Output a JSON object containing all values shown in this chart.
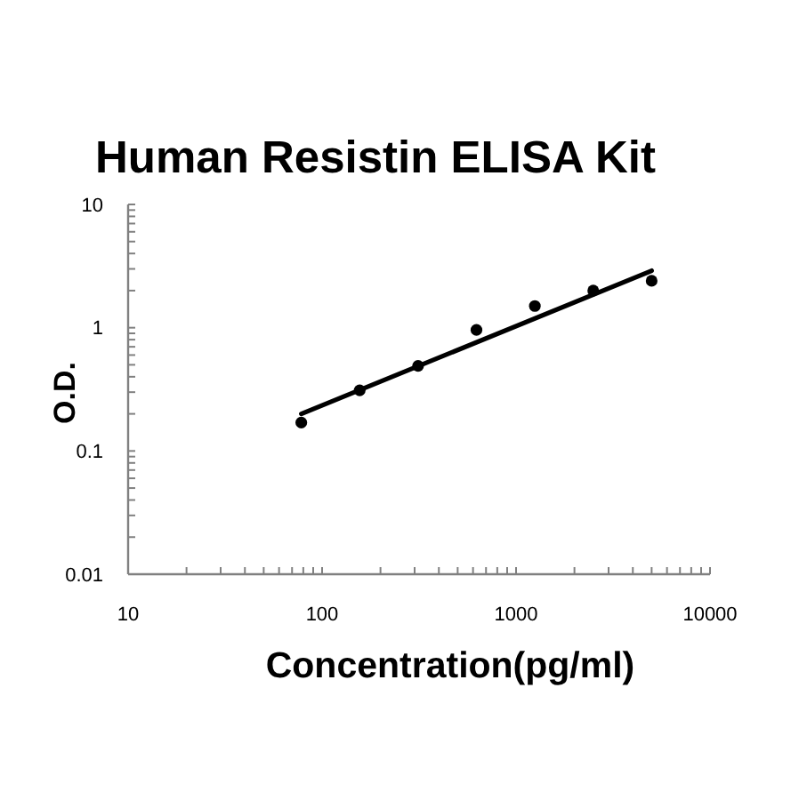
{
  "chart_data": {
    "type": "scatter",
    "title": "Human Resistin ELISA Kit",
    "xlabel": "Concentration(pg/ml)",
    "ylabel": "O.D.",
    "log": "xy",
    "marker": "circle",
    "line_style": "solid",
    "xlim": [
      10,
      10000
    ],
    "xticks": [
      10,
      {
        "value": 20,
        "label": null
      },
      {
        "value": 30,
        "label": null
      },
      {
        "value": 40,
        "label": null
      },
      {
        "value": 50,
        "label": null
      },
      {
        "value": 60,
        "label": null
      },
      {
        "value": 70,
        "label": null
      },
      {
        "value": 80,
        "label": null
      },
      {
        "value": 90,
        "label": null
      },
      100,
      {
        "value": 200,
        "label": null
      },
      {
        "value": 300,
        "label": null
      },
      {
        "value": 400,
        "label": null
      },
      {
        "value": 500,
        "label": null
      },
      {
        "value": 600,
        "label": null
      },
      {
        "value": 700,
        "label": null
      },
      {
        "value": 800,
        "label": null
      },
      {
        "value": 900,
        "label": null
      },
      1000,
      {
        "value": 2000,
        "label": null
      },
      {
        "value": 3000,
        "label": null
      },
      {
        "value": 4000,
        "label": null
      },
      {
        "value": 5000,
        "label": null
      },
      {
        "value": 6000,
        "label": null
      },
      {
        "value": 7000,
        "label": null
      },
      {
        "value": 8000,
        "label": null
      },
      {
        "value": 9000,
        "label": null
      },
      10000
    ],
    "ylim": [
      0.01,
      10
    ],
    "yticks": [
      0.01,
      {
        "value": 0.02,
        "label": null
      },
      {
        "value": 0.03,
        "label": null
      },
      {
        "value": 0.04,
        "label": null
      },
      {
        "value": 0.05,
        "label": null
      },
      {
        "value": 0.06,
        "label": null
      },
      {
        "value": 0.07,
        "label": null
      },
      {
        "value": 0.08,
        "label": null
      },
      {
        "value": 0.09,
        "label": null
      },
      0.1,
      {
        "value": 0.2,
        "label": null
      },
      {
        "value": 0.3,
        "label": null
      },
      {
        "value": 0.4,
        "label": null
      },
      {
        "value": 0.5,
        "label": null
      },
      {
        "value": 0.6,
        "label": null
      },
      {
        "value": 0.7,
        "label": null
      },
      {
        "value": 0.8,
        "label": null
      },
      {
        "value": 0.9,
        "label": null
      },
      1,
      {
        "value": 2,
        "label": null
      },
      {
        "value": 3,
        "label": null
      },
      {
        "value": 4,
        "label": null
      },
      {
        "value": 5,
        "label": null
      },
      {
        "value": 6,
        "label": null
      },
      {
        "value": 7,
        "label": null
      },
      {
        "value": 8,
        "label": null
      },
      {
        "value": 9,
        "label": null
      },
      10
    ],
    "series": [
      {
        "color": "#000000",
        "x": [
          78.125,
          156.25,
          312.5,
          625,
          1250,
          2500,
          5000
        ],
        "values": [
          0.17,
          0.31,
          0.49,
          0.96,
          1.5,
          2.0,
          2.4
        ]
      },
      {
        "type": "line",
        "marker": "none",
        "color": "#000000",
        "x": [
          78.125,
          5000
        ],
        "values": [
          0.2,
          2.9
        ]
      }
    ]
  }
}
